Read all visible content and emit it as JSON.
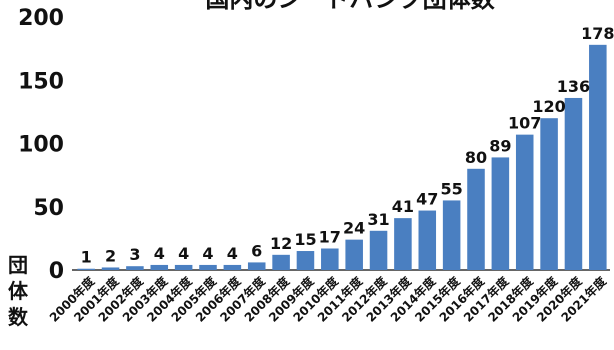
{
  "chart_data": {
    "type": "bar",
    "title": "国内のシードバンク団体数",
    "ylabel": [
      "団",
      "体",
      "数"
    ],
    "xlabel": "",
    "categories": [
      "2000年度",
      "2001年度",
      "2002年度",
      "2003年度",
      "2004年度",
      "2005年度",
      "2006年度",
      "2007年度",
      "2008年度",
      "2009年度",
      "2010年度",
      "2011年度",
      "2012年度",
      "2013年度",
      "2014年度",
      "2015年度",
      "2016年度",
      "2017年度",
      "2018年度",
      "2019年度",
      "2020年度",
      "2021年度"
    ],
    "values": [
      1,
      2,
      3,
      4,
      4,
      4,
      4,
      6,
      12,
      15,
      17,
      24,
      31,
      41,
      47,
      55,
      80,
      89,
      107,
      120,
      136,
      178
    ],
    "ylim": [
      0,
      200
    ],
    "yticks": [
      0,
      50,
      100,
      150,
      200
    ],
    "grid": false,
    "legend": "none",
    "bar_color": "#4a7fc1"
  }
}
